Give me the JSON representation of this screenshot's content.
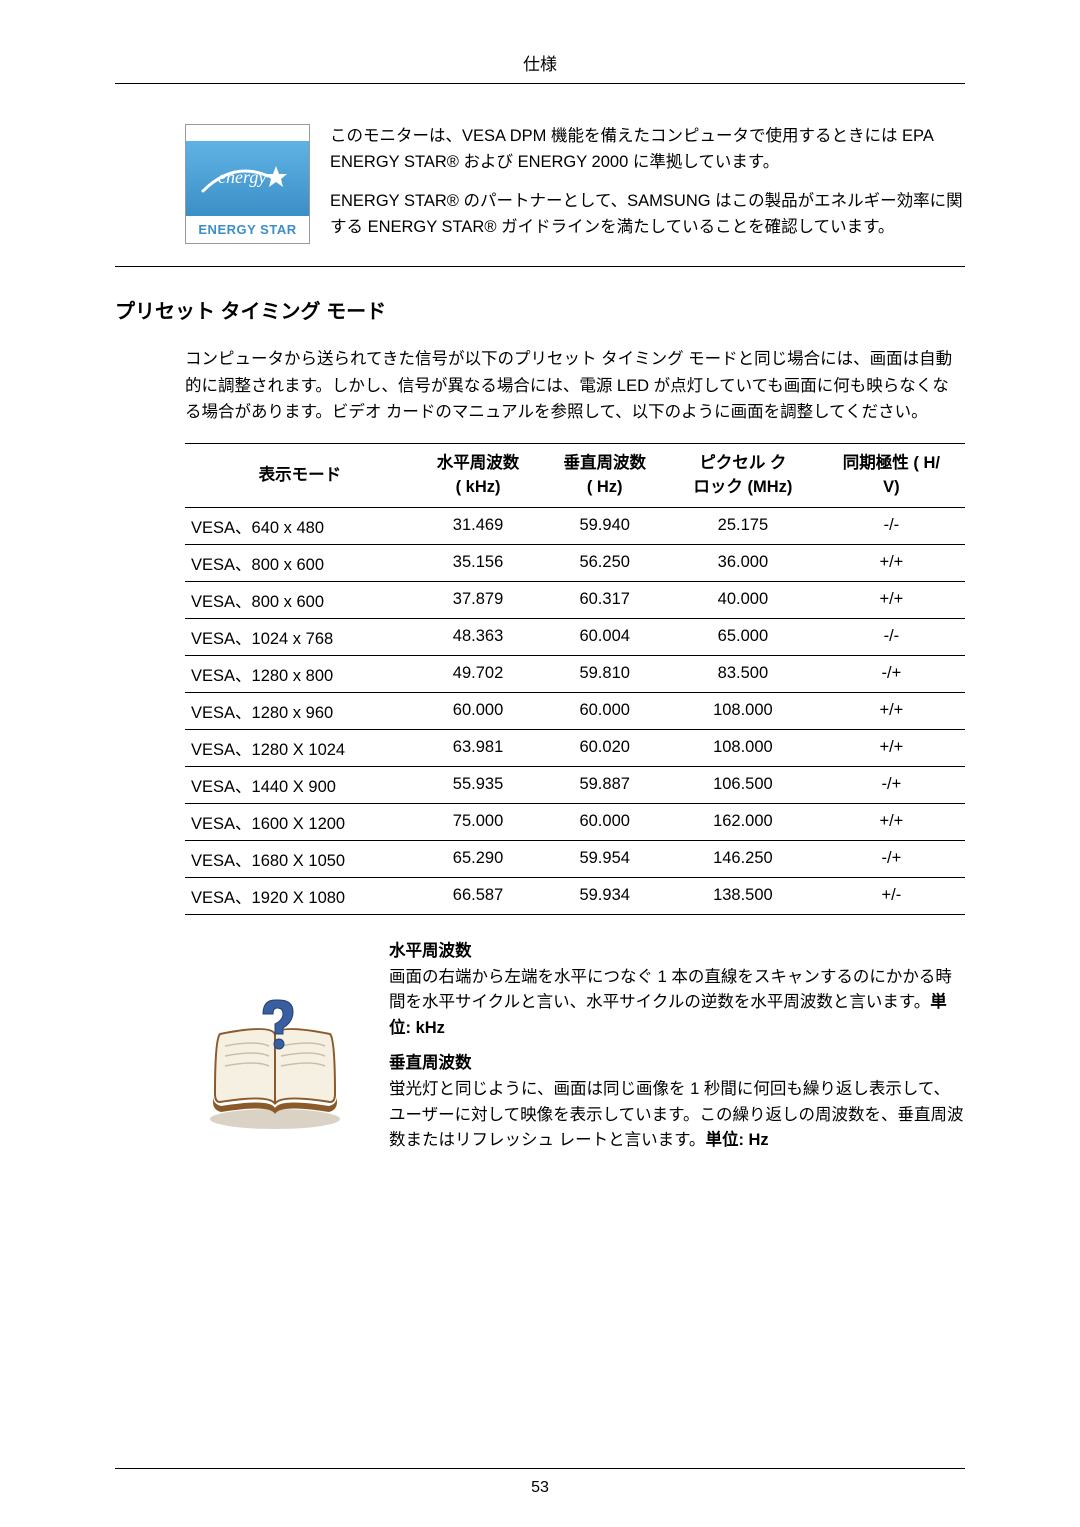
{
  "header": {
    "title": "仕様"
  },
  "energy": {
    "logo_label": "ENERGY STAR",
    "para1": "このモニターは、VESA DPM 機能を備えたコンピュータで使用するときには EPA ENERGY STAR® および ENERGY 2000 に準拠しています。",
    "para2": "ENERGY STAR® のパートナーとして、SAMSUNG はこの製品がエネルギー効率に関する ENERGY STAR® ガイドラインを満たしていることを確認しています。"
  },
  "section_heading": "プリセット タイミング モード",
  "intro": "コンピュータから送られてきた信号が以下のプリセット タイミング モードと同じ場合には、画面は自動的に調整されます。しかし、信号が異なる場合には、電源 LED が点灯していても画面に何も映らなくなる場合があります。ビデオ カードのマニュアルを参照して、以下のように画面を調整してください。",
  "table": {
    "headers": {
      "c1a": "表示モード",
      "c1b": "",
      "c2a": "水平周波数",
      "c2b": "( kHz)",
      "c3a": "垂直周波数",
      "c3b": "( Hz)",
      "c4a": "ピクセル ク",
      "c4b": "ロック (MHz)",
      "c5a": "同期極性 ( H/",
      "c5b": "V)"
    },
    "rows": [
      {
        "mode": "VESA、640 x 480",
        "h": "31.469",
        "v": "59.940",
        "p": "25.175",
        "s": "-/-"
      },
      {
        "mode": "VESA、800 x 600",
        "h": "35.156",
        "v": "56.250",
        "p": "36.000",
        "s": "+/+"
      },
      {
        "mode": "VESA、800 x 600",
        "h": "37.879",
        "v": "60.317",
        "p": "40.000",
        "s": "+/+"
      },
      {
        "mode": "VESA、1024 x 768",
        "h": "48.363",
        "v": "60.004",
        "p": "65.000",
        "s": "-/-"
      },
      {
        "mode": "VESA、1280 x 800",
        "h": "49.702",
        "v": "59.810",
        "p": "83.500",
        "s": "-/+"
      },
      {
        "mode": "VESA、1280 x 960",
        "h": "60.000",
        "v": "60.000",
        "p": "108.000",
        "s": "+/+"
      },
      {
        "mode": "VESA、1280 X 1024",
        "h": "63.981",
        "v": "60.020",
        "p": "108.000",
        "s": "+/+"
      },
      {
        "mode": "VESA、1440 X 900",
        "h": "55.935",
        "v": "59.887",
        "p": "106.500",
        "s": "-/+"
      },
      {
        "mode": "VESA、1600 X 1200",
        "h": "75.000",
        "v": "60.000",
        "p": "162.000",
        "s": "+/+"
      },
      {
        "mode": "VESA、1680 X 1050",
        "h": "65.290",
        "v": "59.954",
        "p": "146.250",
        "s": "-/+"
      },
      {
        "mode": "VESA、1920 X 1080",
        "h": "66.587",
        "v": "59.934",
        "p": "138.500",
        "s": "+/-"
      }
    ]
  },
  "freq": {
    "h_heading": "水平周波数",
    "h_para": "画面の右端から左端を水平につなぐ 1 本の直線をスキャンするのにかかる時間を水平サイクルと言い、水平サイクルの逆数を水平周波数と言います。",
    "h_unit": "単位: kHz",
    "v_heading": "垂直周波数",
    "v_para": "蛍光灯と同じように、画面は同じ画像を 1 秒間に何回も繰り返し表示して、ユーザーに対して映像を表示しています。この繰り返しの周波数を、垂直周波数またはリフレッシュ レートと言います。",
    "v_unit": "単位: Hz"
  },
  "footer": {
    "page": "53"
  },
  "colors": {
    "text": "#000000",
    "logo_blue": "#3b8fc7",
    "logo_grad_top": "#5fb3e4",
    "logo_grad_bot": "#3b8fc7",
    "book_brown": "#8b5a2b",
    "book_page": "#f5f0e1",
    "question_blue": "#3a5fa0"
  }
}
